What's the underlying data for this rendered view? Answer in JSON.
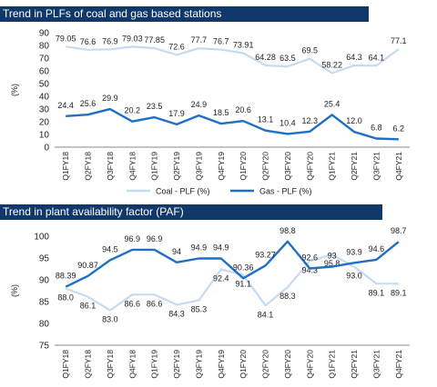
{
  "chart_data": [
    {
      "type": "line",
      "title": "Trend in PLFs of coal and gas based stations",
      "xlabel": "",
      "ylabel": "(%)",
      "ylim": [
        0,
        90
      ],
      "yticks": [
        0,
        10,
        20,
        30,
        40,
        50,
        60,
        70,
        80,
        90
      ],
      "categories": [
        "Q1FY18",
        "Q2FY18",
        "Q3FY18",
        "Q4FY18",
        "Q1FY19",
        "Q2FY19",
        "Q3FY19",
        "Q4FY19",
        "Q1FY20",
        "Q2FY20",
        "Q3FY20",
        "Q4FY20",
        "Q1FY21",
        "Q2FY21",
        "Q3FY21",
        "Q4FY21"
      ],
      "series": [
        {
          "name": "Coal - PLF (%)",
          "color": "#c5dbf0",
          "values": [
            79.05,
            76.6,
            76.9,
            79.03,
            77.85,
            72.6,
            77.7,
            76.7,
            73.91,
            64.28,
            63.5,
            69.5,
            58.22,
            64.3,
            64.1,
            77.1
          ],
          "labels": [
            "79.05",
            "76.6",
            "76.9",
            "79.03",
            "77.85",
            "72.6",
            "77.7",
            "76.7",
            "73.91",
            "64.28",
            "63.5",
            "69.5",
            "58.22",
            "64.3",
            "64.1",
            "77.1"
          ]
        },
        {
          "name": "Gas - PLF (%)",
          "color": "#1f6fc5",
          "values": [
            24.4,
            25.6,
            29.9,
            20.2,
            23.5,
            17.9,
            24.9,
            18.5,
            20.6,
            13.1,
            10.4,
            12.3,
            25.4,
            12.0,
            6.8,
            6.2
          ],
          "labels": [
            "24.4",
            "25.6",
            "29.9",
            "20.2",
            "23.5",
            "17.9",
            "24.9",
            "18.5",
            "20.6",
            "13.1",
            "10.4",
            "12.3",
            "25.4",
            "12.0",
            "6.8",
            "6.2"
          ]
        }
      ],
      "legend": "bottom"
    },
    {
      "type": "line",
      "title": "Trend in plant availability factor (PAF)",
      "xlabel": "",
      "ylabel": "(%)",
      "ylim": [
        75,
        100
      ],
      "yticks": [
        75,
        80,
        85,
        90,
        95,
        100
      ],
      "categories": [
        "Q1FY18",
        "Q2FY18",
        "Q3FY18",
        "Q4FY18",
        "Q1FY19",
        "Q2FY19",
        "Q3FY19",
        "Q4FY19",
        "Q1FY20",
        "Q2FY20",
        "Q3FY20",
        "Q4FY20",
        "Q1FY21",
        "Q2FY21",
        "Q3FY21",
        "Q4FY21"
      ],
      "series": [
        {
          "color": "#c5dbf0",
          "values": [
            88.0,
            86.1,
            83.0,
            86.6,
            86.6,
            84.3,
            85.3,
            92.4,
            91.1,
            84.1,
            88.3,
            94.3,
            95.8,
            93.0,
            89.1,
            89.1
          ],
          "labels": [
            "88.0",
            "86.1",
            "83.0",
            "86.6",
            "86.6",
            "84.3",
            "85.3",
            "92.4",
            "91.1",
            "84.1",
            "88.3",
            "94.3",
            "95.8",
            "93.0",
            "89.1",
            "89.1"
          ]
        },
        {
          "color": "#1f6fc5",
          "values": [
            88.39,
            90.87,
            94.5,
            96.9,
            96.9,
            94,
            94.9,
            94.9,
            90.36,
            93.27,
            98.8,
            92.6,
            93,
            93.9,
            94.6,
            98.7
          ],
          "labels": [
            "88.39",
            "90.87",
            "94.5",
            "96.9",
            "96.9",
            "94",
            "94.9",
            "94.9",
            "90.36",
            "93.27",
            "98.8",
            "92.6",
            "93",
            "93.9",
            "94.6",
            "98.7"
          ]
        }
      ]
    }
  ]
}
